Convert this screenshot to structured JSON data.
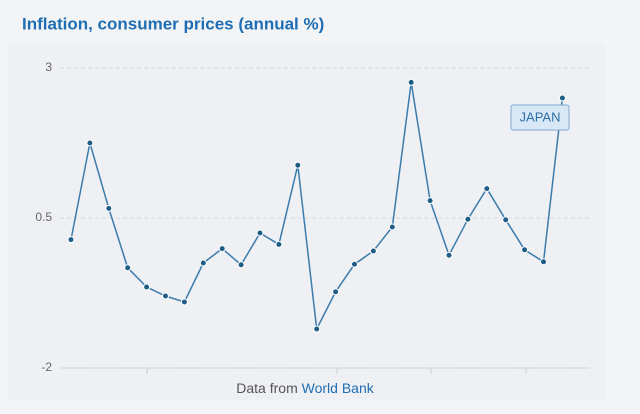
{
  "chart_data": {
    "type": "line",
    "title": "Inflation, consumer prices (annual %)",
    "series": [
      {
        "name": "JAPAN",
        "color": "#3b7bab",
        "values": [
          0.14,
          1.75,
          0.66,
          -0.33,
          -0.65,
          -0.8,
          -0.9,
          -0.25,
          -0.01,
          -0.28,
          0.25,
          0.06,
          1.38,
          -1.35,
          -0.73,
          -0.27,
          -0.05,
          0.35,
          2.76,
          0.79,
          -0.12,
          0.48,
          0.99,
          0.47,
          -0.03,
          -0.23,
          2.5
        ]
      }
    ],
    "ylim": [
      -2,
      3
    ],
    "yticks": [
      3,
      0.5,
      -2
    ],
    "grid": true,
    "source_prefix": "Data from",
    "source": "World Bank"
  }
}
